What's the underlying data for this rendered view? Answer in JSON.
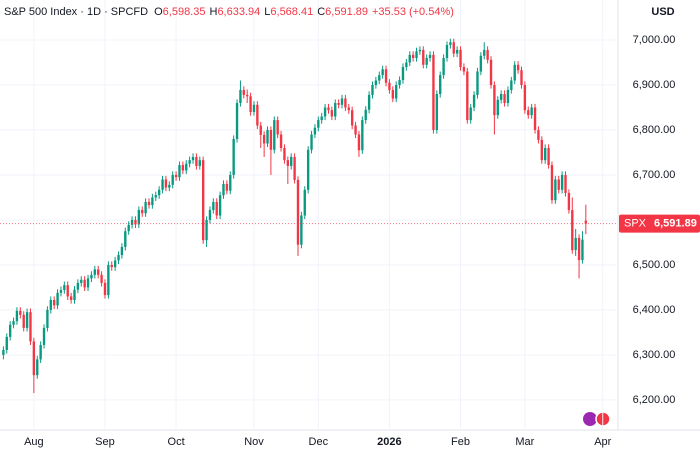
{
  "chart_data": {
    "type": "candlestick",
    "title": "S&P 500 Index · 1D · SPCFD",
    "ohlc_letters": [
      "O",
      "H",
      "L",
      "C"
    ],
    "last_labels": [
      "6,598.35",
      "6,633.94",
      "6,568.41",
      "6,591.89"
    ],
    "change_label": "+35.53",
    "change_pct_label": "(+0.54%)",
    "symbol": "SPX",
    "y_unit": "USD",
    "up_color": "#089981",
    "down_color": "#f23645",
    "grid": true,
    "xlim": [
      -1,
      181.5
    ],
    "xticks": [
      {
        "value": 9,
        "label": "Aug"
      },
      {
        "value": 30,
        "label": "Sep"
      },
      {
        "value": 51,
        "label": "Oct"
      },
      {
        "value": 74,
        "label": "Nov"
      },
      {
        "value": 93,
        "label": "Dec"
      },
      {
        "value": 114,
        "label": "2026"
      },
      {
        "value": 135,
        "label": "Feb"
      },
      {
        "value": 154,
        "label": "Mar"
      },
      {
        "value": 177,
        "label": "Apr"
      }
    ],
    "ylim": [
      6133,
      7089
    ],
    "yticks": [
      {
        "value": 6200,
        "label": "6,200.00"
      },
      {
        "value": 6300,
        "label": "6,300.00"
      },
      {
        "value": 6400,
        "label": "6,400.00"
      },
      {
        "value": 6500,
        "label": "6,500.00"
      },
      {
        "value": 6600,
        "label": "6,600.00"
      },
      {
        "value": 6700,
        "label": "6,700.00"
      },
      {
        "value": 6800,
        "label": "6,800.00"
      },
      {
        "value": 6900,
        "label": "6,900.00"
      },
      {
        "value": 7000,
        "label": "7,000.00"
      }
    ],
    "open": [
      6300,
      6311,
      6340,
      6367,
      6375,
      6398,
      6389,
      6360,
      6395,
      6330,
      6255,
      6290,
      6322,
      6360,
      6400,
      6422,
      6410,
      6438,
      6444,
      6455,
      6430,
      6422,
      6445,
      6460,
      6467,
      6450,
      6470,
      6478,
      6490,
      6478,
      6460,
      6433,
      6500,
      6495,
      6510,
      6522,
      6540,
      6575,
      6589,
      6600,
      6590,
      6622,
      6615,
      6640,
      6633,
      6650,
      6655,
      6667,
      6690,
      6672,
      6678,
      6700,
      6695,
      6722,
      6710,
      6725,
      6733,
      6740,
      6720,
      6733,
      6555,
      6600,
      6622,
      6640,
      6610,
      6655,
      6680,
      6665,
      6700,
      6780,
      6860,
      6889,
      6878,
      6875,
      6840,
      6856,
      6810,
      6789,
      6770,
      6800,
      6756,
      6822,
      6790,
      6760,
      6733,
      6720,
      6740,
      6689,
      6545,
      6610,
      6667,
      6756,
      6790,
      6805,
      6822,
      6830,
      6850,
      6844,
      6830,
      6860,
      6856,
      6870,
      6850,
      6844,
      6810,
      6790,
      6755,
      6822,
      6845,
      6878,
      6900,
      6910,
      6922,
      6935,
      6905,
      6889,
      6870,
      6900,
      6911,
      6940,
      6950,
      6967,
      6960,
      6975,
      6978,
      6945,
      6960,
      6967,
      6800,
      6880,
      6922,
      6960,
      6989,
      6995,
      6970,
      6978,
      6940,
      6930,
      6822,
      6850,
      6878,
      6930,
      6965,
      6978,
      6956,
      6900,
      6833,
      6867,
      6880,
      6860,
      6889,
      6910,
      6945,
      6933,
      6900,
      6844,
      6833,
      6850,
      6800,
      6778,
      6733,
      6760,
      6722,
      6644,
      6690,
      6667,
      6700,
      6660,
      6622,
      6533,
      6560,
      6511,
      6598.35
    ],
    "high": [
      6319,
      6348,
      6375,
      6383,
      6406,
      6406,
      6397,
      6403,
      6403,
      6338,
      6298,
      6330,
      6368,
      6408,
      6430,
      6430,
      6446,
      6452,
      6463,
      6463,
      6438,
      6453,
      6468,
      6475,
      6475,
      6478,
      6486,
      6498,
      6498,
      6486,
      6468,
      6508,
      6508,
      6518,
      6530,
      6548,
      6583,
      6597,
      6608,
      6608,
      6630,
      6630,
      6648,
      6648,
      6658,
      6663,
      6675,
      6698,
      6698,
      6686,
      6708,
      6708,
      6730,
      6730,
      6733,
      6741,
      6748,
      6748,
      6741,
      6741,
      6608,
      6630,
      6648,
      6648,
      6663,
      6688,
      6688,
      6708,
      6788,
      6868,
      6910,
      6897,
      6890,
      6883,
      6864,
      6864,
      6818,
      6797,
      6808,
      6808,
      6830,
      6830,
      6798,
      6768,
      6741,
      6748,
      6748,
      6697,
      6618,
      6675,
      6764,
      6798,
      6813,
      6830,
      6838,
      6858,
      6858,
      6852,
      6868,
      6868,
      6878,
      6878,
      6858,
      6852,
      6818,
      6798,
      6830,
      6853,
      6886,
      6908,
      6918,
      6930,
      6943,
      6943,
      6913,
      6897,
      6908,
      6919,
      6948,
      6958,
      6975,
      6975,
      6983,
      6986,
      6986,
      6968,
      6975,
      6975,
      6888,
      6930,
      6968,
      6997,
      7003,
      7003,
      6986,
      6986,
      6948,
      6938,
      6858,
      6886,
      6938,
      6973,
      6995,
      6986,
      6964,
      6908,
      6875,
      6888,
      6888,
      6897,
      6918,
      6953,
      6953,
      6941,
      6908,
      6852,
      6858,
      6858,
      6808,
      6786,
      6768,
      6768,
      6730,
      6698,
      6698,
      6708,
      6708,
      6668,
      6650,
      6580,
      6568,
      6575,
      6633.94
    ],
    "low": [
      6290,
      6303,
      6332,
      6359,
      6367,
      6381,
      6352,
      6352,
      6322,
      6215,
      6247,
      6282,
      6314,
      6352,
      6392,
      6402,
      6402,
      6430,
      6436,
      6422,
      6414,
      6414,
      6437,
      6452,
      6442,
      6442,
      6462,
      6470,
      6470,
      6452,
      6425,
      6425,
      6487,
      6487,
      6502,
      6514,
      6532,
      6567,
      6581,
      6582,
      6582,
      6607,
      6607,
      6625,
      6625,
      6642,
      6647,
      6659,
      6664,
      6664,
      6670,
      6687,
      6687,
      6702,
      6702,
      6717,
      6725,
      6712,
      6712,
      6547,
      6540,
      6592,
      6614,
      6602,
      6602,
      6647,
      6657,
      6657,
      6692,
      6772,
      6852,
      6870,
      6860,
      6832,
      6832,
      6802,
      6760,
      6740,
      6762,
      6700,
      6748,
      6782,
      6752,
      6725,
      6680,
      6712,
      6681,
      6520,
      6537,
      6602,
      6659,
      6748,
      6782,
      6797,
      6814,
      6822,
      6836,
      6822,
      6822,
      6848,
      6848,
      6842,
      6836,
      6802,
      6782,
      6740,
      6747,
      6814,
      6837,
      6870,
      6892,
      6902,
      6914,
      6897,
      6881,
      6862,
      6862,
      6892,
      6903,
      6932,
      6942,
      6952,
      6952,
      6967,
      6937,
      6937,
      6952,
      6792,
      6792,
      6872,
      6914,
      6952,
      6981,
      6962,
      6962,
      6932,
      6922,
      6814,
      6814,
      6842,
      6870,
      6922,
      6957,
      6948,
      6892,
      6790,
      6825,
      6859,
      6852,
      6852,
      6881,
      6902,
      6925,
      6892,
      6836,
      6825,
      6825,
      6792,
      6770,
      6725,
      6725,
      6714,
      6636,
      6636,
      6659,
      6659,
      6652,
      6614,
      6525,
      6520,
      6470,
      6503,
      6568.41
    ],
    "close": [
      6311,
      6340,
      6367,
      6375,
      6398,
      6389,
      6360,
      6395,
      6330,
      6255,
      6290,
      6322,
      6360,
      6400,
      6422,
      6410,
      6438,
      6444,
      6455,
      6430,
      6422,
      6445,
      6460,
      6467,
      6450,
      6470,
      6478,
      6490,
      6478,
      6460,
      6433,
      6500,
      6495,
      6510,
      6522,
      6540,
      6575,
      6589,
      6600,
      6590,
      6622,
      6615,
      6640,
      6633,
      6650,
      6655,
      6667,
      6690,
      6672,
      6678,
      6700,
      6695,
      6722,
      6710,
      6725,
      6733,
      6740,
      6720,
      6733,
      6555,
      6600,
      6622,
      6640,
      6610,
      6655,
      6680,
      6665,
      6700,
      6780,
      6860,
      6889,
      6878,
      6875,
      6840,
      6856,
      6810,
      6789,
      6770,
      6800,
      6756,
      6822,
      6790,
      6760,
      6733,
      6720,
      6740,
      6689,
      6545,
      6610,
      6667,
      6756,
      6790,
      6805,
      6822,
      6830,
      6850,
      6844,
      6830,
      6860,
      6856,
      6870,
      6850,
      6844,
      6810,
      6790,
      6755,
      6822,
      6845,
      6878,
      6900,
      6910,
      6922,
      6935,
      6905,
      6889,
      6870,
      6900,
      6911,
      6940,
      6950,
      6967,
      6960,
      6975,
      6978,
      6945,
      6960,
      6967,
      6800,
      6880,
      6922,
      6960,
      6989,
      6995,
      6970,
      6978,
      6940,
      6930,
      6822,
      6850,
      6878,
      6930,
      6965,
      6978,
      6956,
      6900,
      6833,
      6867,
      6880,
      6860,
      6889,
      6910,
      6945,
      6933,
      6900,
      6844,
      6833,
      6850,
      6800,
      6778,
      6733,
      6760,
      6722,
      6644,
      6690,
      6667,
      6700,
      6660,
      6622,
      6533,
      6560,
      6511,
      6556.36,
      6591.89
    ]
  }
}
